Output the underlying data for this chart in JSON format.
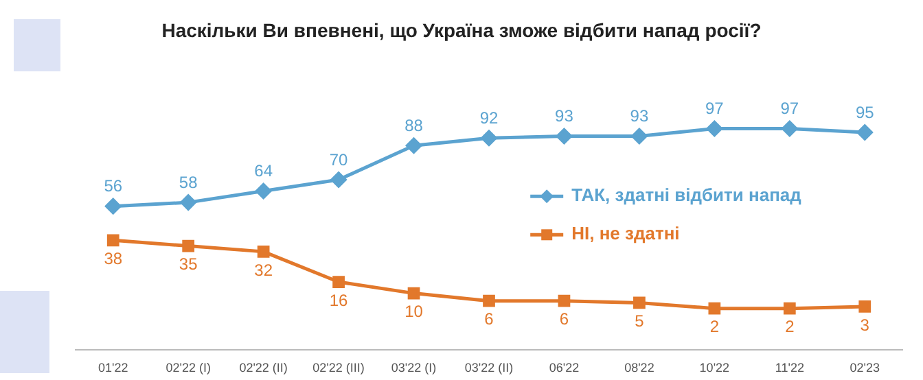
{
  "chart_data": {
    "type": "line",
    "title": "Наскільки Ви впевнені, що Україна зможе відбити напад росії?",
    "categories": [
      "01'22",
      "02'22 (I)",
      "02'22 (II)",
      "02'22 (III)",
      "03'22 (I)",
      "03'22 (II)",
      "06'22",
      "08'22",
      "10'22",
      "11'22",
      "02'23"
    ],
    "series": [
      {
        "name": "ТАК, здатні відбити напад",
        "color": "#5ba3d0",
        "marker": "diamond",
        "values": [
          56,
          58,
          64,
          70,
          88,
          92,
          93,
          93,
          97,
          97,
          95
        ]
      },
      {
        "name": "НІ, не здатні",
        "color": "#e2782b",
        "marker": "square",
        "values": [
          38,
          35,
          32,
          16,
          10,
          6,
          6,
          5,
          2,
          2,
          3
        ]
      }
    ],
    "data_labels": true,
    "grid": false,
    "legend": "right"
  }
}
